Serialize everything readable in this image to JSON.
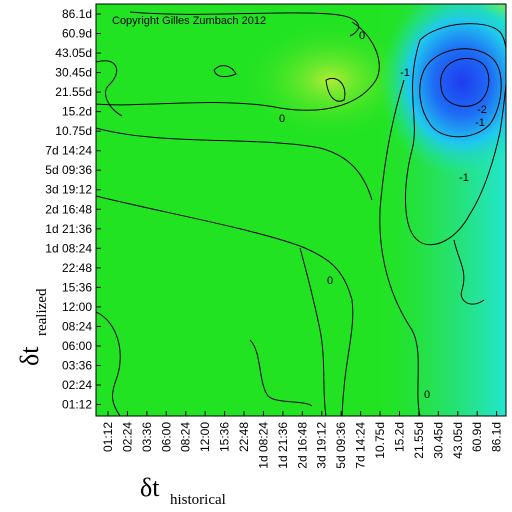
{
  "chart_data": {
    "type": "heatmap",
    "copyright": "Copyright Gilles Zumbach 2012",
    "xlabel": {
      "symbol": "δt",
      "subscript": "historical"
    },
    "ylabel": {
      "symbol": "δt",
      "subscript": "realized"
    },
    "x_ticks": [
      "01:12",
      "02:24",
      "03:36",
      "06:00",
      "08:24",
      "12:00",
      "15:36",
      "22:48",
      "1d 08:24",
      "1d 21:36",
      "2d 16:48",
      "3d 19:12",
      "5d 09:36",
      "7d 14:24",
      "10.75d",
      "15.2d",
      "21.55d",
      "30.45d",
      "43.05d",
      "60.9d",
      "86.1d"
    ],
    "y_ticks": [
      "86.1d",
      "60.9d",
      "43.05d",
      "30.45d",
      "21.55d",
      "15.2d",
      "10.75d",
      "7d 14:24",
      "5d 09:36",
      "3d 19:12",
      "2d 16:48",
      "1d 21:36",
      "1d 08:24",
      "22:48",
      "15:36",
      "12:00",
      "08:24",
      "06:00",
      "03:36",
      "02:24",
      "01:12"
    ],
    "contour_labels": [
      "0",
      "-1",
      "0",
      "-1",
      "-2",
      "-1",
      "0",
      "0"
    ],
    "colors": {
      "base": "#22e322",
      "low": "#1a3cff",
      "mid": "#20e6e6",
      "high": "#ff7a00"
    }
  }
}
